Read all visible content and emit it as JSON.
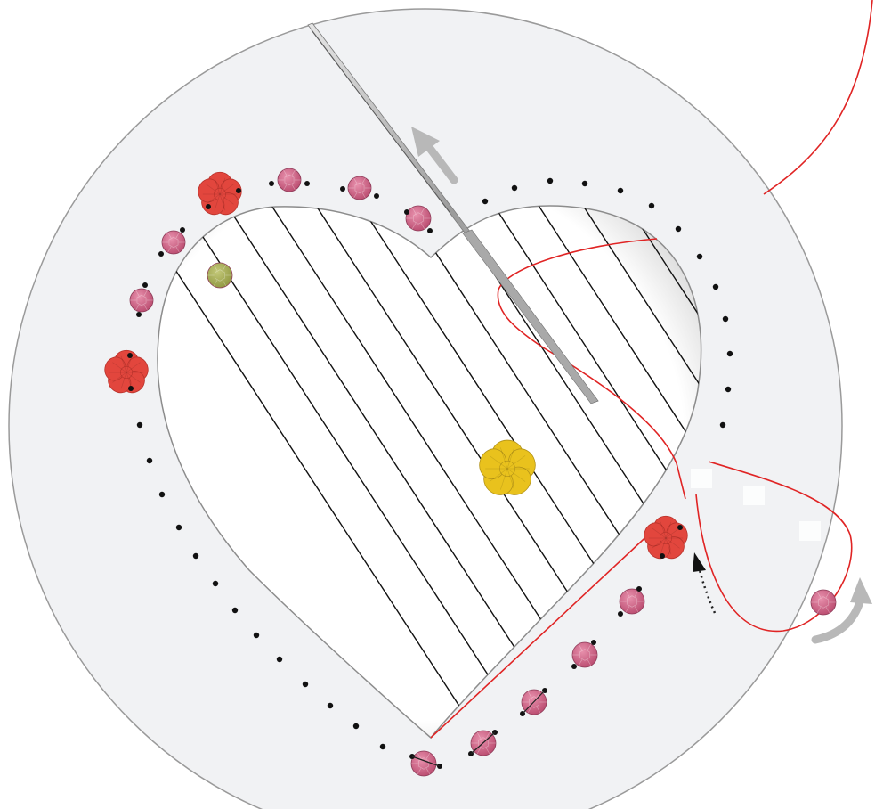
{
  "illustration": {
    "subject": "",
    "colors": {
      "background": "#ffffff",
      "disc_fill": "#f1f2f4",
      "disc_stroke": "#9a9a9a",
      "heart_inner": "#ffffff",
      "heart_shadow": "#bdbdbd",
      "string_black": "#111111",
      "thread_red": "#e02424",
      "bead_pink": "#c9577c",
      "bead_pink_light": "#e07c9d",
      "flower_red": "#e2463d",
      "flower_yellow": "#e9c21d",
      "bead_green": "#a8b055",
      "needle": "#b0b0b0",
      "arrow_gray": "#b8b8b8",
      "hole_dot": "#111111"
    },
    "icons": [
      "needle-icon",
      "flower-bead-icon",
      "round-bead-icon",
      "direction-arrow-icon",
      "dotted-arrow-icon",
      "curved-arrow-icon"
    ]
  }
}
